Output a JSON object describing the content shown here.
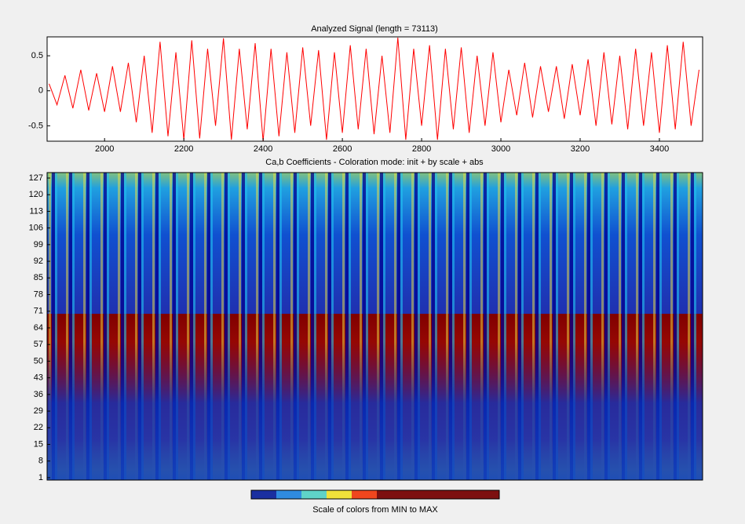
{
  "charts": [
    {
      "type": "line",
      "title": "Analyzed Signal (length = 73113)",
      "x": [
        1860,
        1880,
        1900,
        1920,
        1940,
        1960,
        1980,
        2000,
        2020,
        2040,
        2060,
        2080,
        2100,
        2120,
        2140,
        2160,
        2180,
        2200,
        2220,
        2240,
        2260,
        2280,
        2300,
        2320,
        2340,
        2360,
        2380,
        2400,
        2420,
        2440,
        2460,
        2480,
        2500,
        2520,
        2540,
        2560,
        2580,
        2600,
        2620,
        2640,
        2660,
        2680,
        2700,
        2720,
        2740,
        2760,
        2780,
        2800,
        2820,
        2840,
        2860,
        2880,
        2900,
        2920,
        2940,
        2960,
        2980,
        3000,
        3020,
        3040,
        3060,
        3080,
        3100,
        3120,
        3140,
        3160,
        3180,
        3200,
        3220,
        3240,
        3260,
        3280,
        3300,
        3320,
        3340,
        3360,
        3380,
        3400,
        3420,
        3440,
        3460,
        3480,
        3500
      ],
      "series": [
        {
          "color": "#ff0000",
          "values": [
            0.1,
            -0.2,
            0.22,
            -0.25,
            0.3,
            -0.28,
            0.25,
            -0.3,
            0.35,
            -0.3,
            0.4,
            -0.45,
            0.5,
            -0.6,
            0.7,
            -0.65,
            0.55,
            -0.7,
            0.72,
            -0.68,
            0.6,
            -0.5,
            0.75,
            -0.7,
            0.6,
            -0.55,
            0.68,
            -0.72,
            0.6,
            -0.65,
            0.55,
            -0.6,
            0.62,
            -0.5,
            0.58,
            -0.7,
            0.55,
            -0.6,
            0.65,
            -0.55,
            0.6,
            -0.62,
            0.5,
            -0.6,
            0.76,
            -0.7,
            0.6,
            -0.5,
            0.65,
            -0.7,
            0.6,
            -0.55,
            0.62,
            -0.6,
            0.5,
            -0.5,
            0.55,
            -0.45,
            0.3,
            -0.35,
            0.4,
            -0.38,
            0.35,
            -0.3,
            0.35,
            -0.4,
            0.38,
            -0.35,
            0.45,
            -0.5,
            0.55,
            -0.48,
            0.5,
            -0.55,
            0.6,
            -0.5,
            0.55,
            -0.6,
            0.65,
            -0.55,
            0.7,
            -0.5,
            0.3
          ]
        }
      ],
      "xlim": [
        1855,
        3509
      ],
      "xticks": [
        2000,
        2200,
        2400,
        2600,
        2800,
        3000,
        3200,
        3400
      ],
      "ylim": [
        -0.72,
        0.77
      ],
      "yticks": [
        -0.5,
        0,
        0.5
      ]
    },
    {
      "type": "heatmap",
      "title": "Ca,b Coefficients - Coloration mode: init + by scale + abs",
      "ylim": [
        0,
        129.3
      ],
      "yticks": [
        1,
        8,
        15,
        22,
        29,
        36,
        43,
        50,
        57,
        64,
        71,
        78,
        85,
        92,
        99,
        106,
        113,
        120,
        127
      ],
      "colorbar_label": "Scale of colors from MIN to MAX"
    }
  ]
}
